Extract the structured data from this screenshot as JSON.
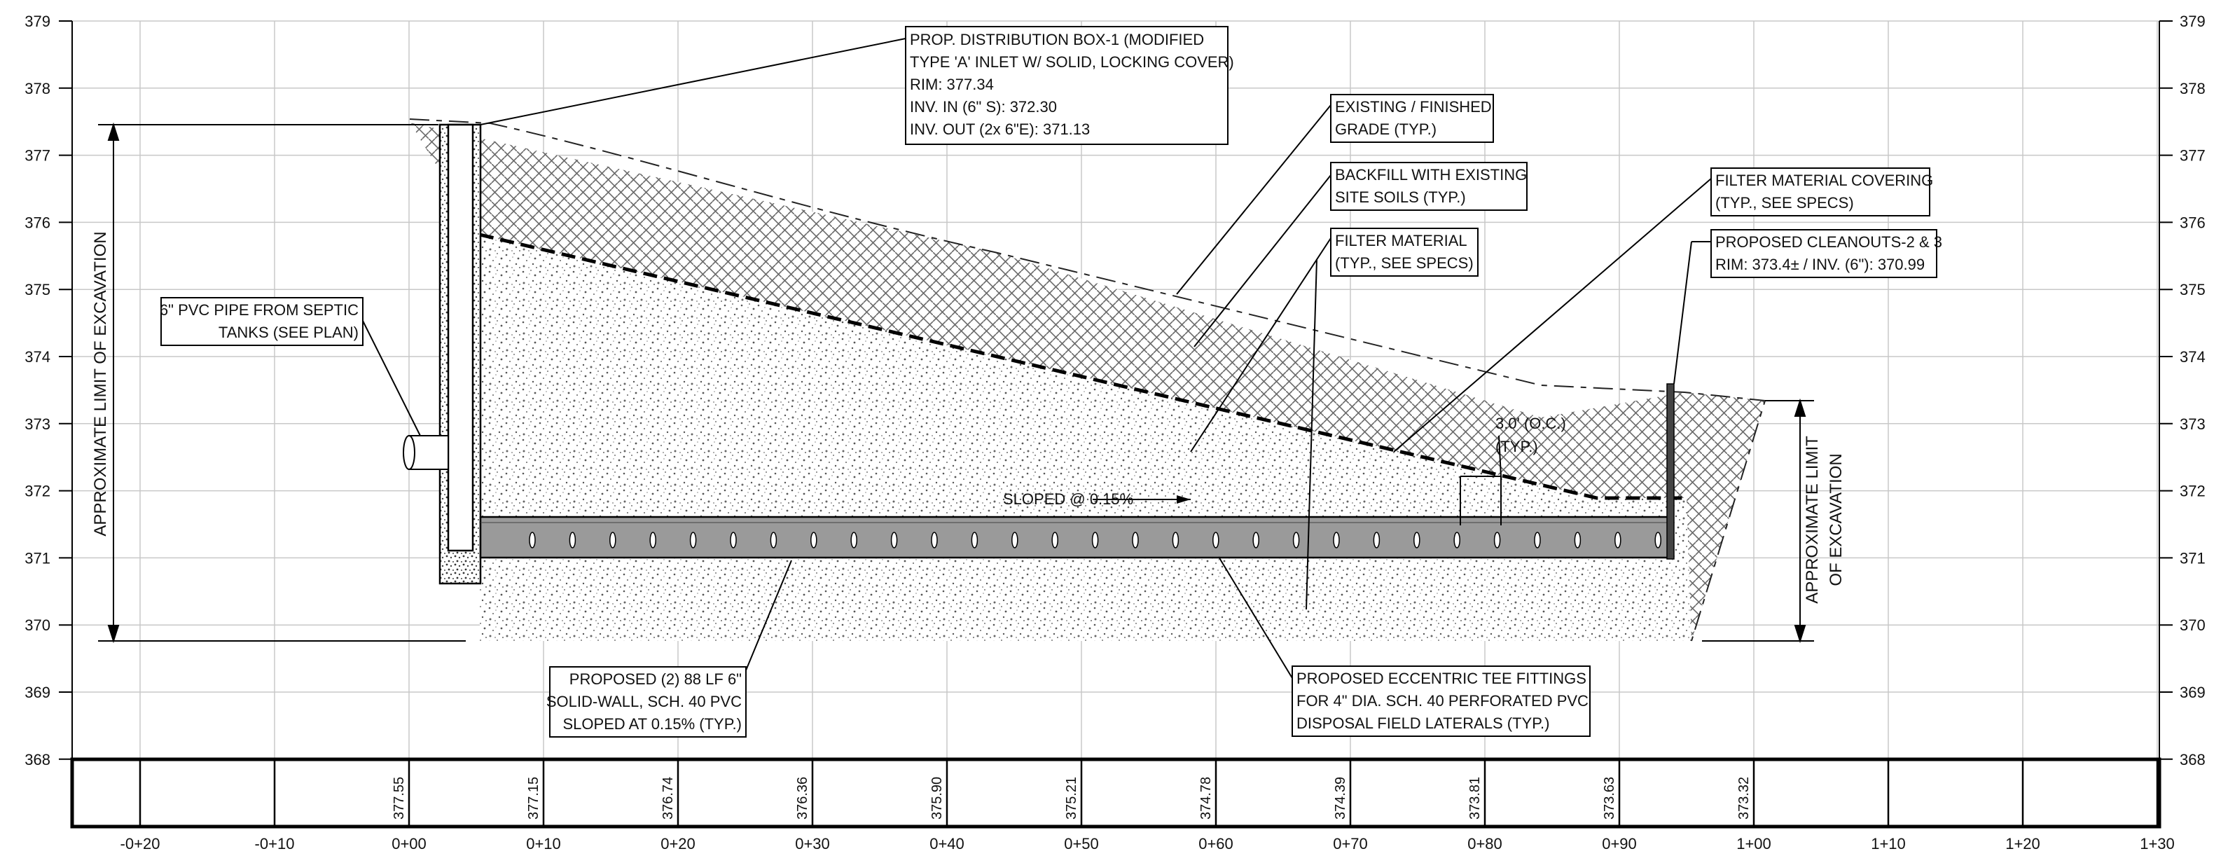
{
  "elevation_labels": [
    "379",
    "378",
    "377",
    "376",
    "375",
    "374",
    "373",
    "372",
    "371",
    "370",
    "369",
    "368"
  ],
  "station_labels": [
    "-0+20",
    "-0+10",
    "0+00",
    "0+10",
    "0+20",
    "0+30",
    "0+40",
    "0+50",
    "0+60",
    "0+70",
    "0+80",
    "0+90",
    "1+00",
    "1+10",
    "1+20",
    "1+30"
  ],
  "profile_elevations": [
    "377.55",
    "377.15",
    "376.74",
    "376.36",
    "375.90",
    "375.21",
    "374.78",
    "374.39",
    "373.81",
    "373.63",
    "373.32"
  ],
  "callouts": {
    "distribution_box": [
      "PROP. DISTRIBUTION BOX-1 (MODIFIED",
      "TYPE 'A' INLET W/ SOLID, LOCKING COVER)",
      "RIM: 377.34",
      "INV. IN (6\" S): 372.30",
      "INV. OUT (2x 6\"E): 371.13"
    ],
    "existing_grade": [
      "EXISTING / FINISHED",
      "GRADE (TYP.)"
    ],
    "backfill": [
      "BACKFILL WITH EXISTING",
      "SITE SOILS (TYP.)"
    ],
    "filter_material": [
      "FILTER MATERIAL",
      "(TYP., SEE SPECS)"
    ],
    "filter_covering": [
      "FILTER MATERIAL COVERING",
      "(TYP., SEE SPECS)"
    ],
    "cleanouts": [
      "PROPOSED CLEANOUTS-2 & 3",
      "RIM: 373.4± / INV. (6\"): 370.99"
    ],
    "pvc_pipe": [
      "6\" PVC PIPE FROM SEPTIC",
      "TANKS (SEE PLAN)"
    ],
    "proposed_pipe": [
      "PROPOSED (2) 88 LF 6\"",
      "SOLID-WALL, SCH. 40 PVC",
      "SLOPED AT 0.15% (TYP.)"
    ],
    "tee_fittings": [
      "PROPOSED ECCENTRIC TEE FITTINGS",
      "FOR 4\" DIA. SCH. 40 PERFORATED PVC",
      "DISPOSAL FIELD LATERALS (TYP.)"
    ],
    "spacing": [
      "3.0' (O.C.)",
      "(TYP.)"
    ],
    "sloped": "SLOPED @ 0.15%"
  },
  "vertical_labels": {
    "left_excavation": "APPROXIMATE LIMIT OF EXCAVATION",
    "right_excavation": [
      "APPROXIMATE LIMIT",
      "OF EXCAVATION"
    ]
  }
}
